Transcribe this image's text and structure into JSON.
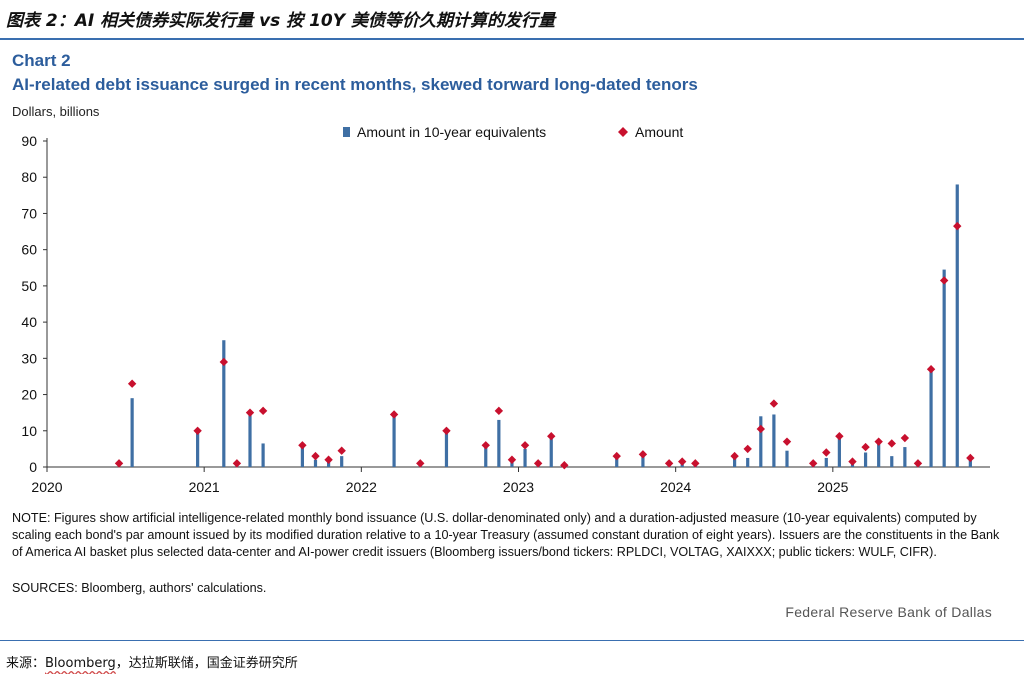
{
  "header": {
    "cn_title": "图表 2：AI 相关债券实际发行量 vs 按 10Y 美债等价久期计算的发行量"
  },
  "chart": {
    "label": "Chart 2",
    "title": "AI-related debt issuance surged in recent months, skewed torward long-dated tenors",
    "y_unit": "Dollars, billions",
    "note": "NOTE: Figures show artificial intelligence-related monthly bond issuance (U.S. dollar-denominated only) and a duration-adjusted measure (10-year equivalents) computed by scaling each bond's par amount issued by its modified duration relative to a 10-year Treasury (assumed constant duration of eight years). Issuers are the constituents in the Bank of America AI basket plus selected data-center and AI-power credit issuers (Bloomberg issuers/bond tickers: RPLDCI, VOLTAG, XAIXXX; public tickers: WULF, CIFR).",
    "sources": "SOURCES: Bloomberg, authors' calculations.",
    "credit": "Federal Reserve Bank of Dallas"
  },
  "footer": {
    "prefix": "来源：",
    "bloomberg": "Bloomberg",
    "rest": "，达拉斯联储，国金证券研究所"
  },
  "colors": {
    "bar": "#3f6fa4",
    "marker": "#c8102e",
    "axis": "#333333",
    "title_blue": "#2c5d9c"
  },
  "chart_data": {
    "type": "bar",
    "ylim": [
      0,
      90
    ],
    "yticks": [
      0,
      10,
      20,
      30,
      40,
      50,
      60,
      70,
      80,
      90
    ],
    "xlim": [
      "2020-01",
      "2026-01"
    ],
    "xticks": [
      "2020",
      "2021",
      "2022",
      "2023",
      "2024",
      "2025"
    ],
    "grid": false,
    "legend_position": "top",
    "series": [
      {
        "name": "Amount in 10-year equivalents",
        "style": "bar",
        "points": [
          [
            "2020-06",
            0
          ],
          [
            "2020-07",
            19
          ],
          [
            "2020-12",
            10
          ],
          [
            "2021-02",
            35
          ],
          [
            "2021-03",
            0.5
          ],
          [
            "2021-04",
            15
          ],
          [
            "2021-05",
            6.5
          ],
          [
            "2021-08",
            5.5
          ],
          [
            "2021-09",
            2
          ],
          [
            "2021-10",
            2
          ],
          [
            "2021-11",
            3
          ],
          [
            "2022-03",
            14.5
          ],
          [
            "2022-05",
            1
          ],
          [
            "2022-07",
            9.5
          ],
          [
            "2022-10",
            6
          ],
          [
            "2022-11",
            13
          ],
          [
            "2022-12",
            1.5
          ],
          [
            "2023-01",
            5
          ],
          [
            "2023-02",
            0.5
          ],
          [
            "2023-03",
            8.5
          ],
          [
            "2023-04",
            0.5
          ],
          [
            "2023-08",
            2.5
          ],
          [
            "2023-10",
            3
          ],
          [
            "2023-12",
            0.5
          ],
          [
            "2024-01",
            1.5
          ],
          [
            "2024-02",
            1
          ],
          [
            "2024-05",
            3
          ],
          [
            "2024-06",
            2.5
          ],
          [
            "2024-07",
            14
          ],
          [
            "2024-08",
            14.5
          ],
          [
            "2024-09",
            4.5
          ],
          [
            "2024-11",
            0.3
          ],
          [
            "2024-12",
            2.5
          ],
          [
            "2025-01",
            8
          ],
          [
            "2025-02",
            1
          ],
          [
            "2025-03",
            4
          ],
          [
            "2025-04",
            7
          ],
          [
            "2025-05",
            3
          ],
          [
            "2025-06",
            5.5
          ],
          [
            "2025-07",
            0.5
          ],
          [
            "2025-08",
            27
          ],
          [
            "2025-09",
            54.5
          ],
          [
            "2025-10",
            78
          ],
          [
            "2025-11",
            2
          ]
        ]
      },
      {
        "name": "Amount",
        "style": "marker",
        "points": [
          [
            "2020-06",
            1
          ],
          [
            "2020-07",
            23
          ],
          [
            "2020-12",
            10
          ],
          [
            "2021-02",
            29
          ],
          [
            "2021-03",
            1
          ],
          [
            "2021-04",
            15
          ],
          [
            "2021-05",
            15.5
          ],
          [
            "2021-08",
            6
          ],
          [
            "2021-09",
            3
          ],
          [
            "2021-10",
            2
          ],
          [
            "2021-11",
            4.5
          ],
          [
            "2022-03",
            14.5
          ],
          [
            "2022-05",
            1
          ],
          [
            "2022-07",
            10
          ],
          [
            "2022-10",
            6
          ],
          [
            "2022-11",
            15.5
          ],
          [
            "2022-12",
            2
          ],
          [
            "2023-01",
            6
          ],
          [
            "2023-02",
            1
          ],
          [
            "2023-03",
            8.5
          ],
          [
            "2023-04",
            0.5
          ],
          [
            "2023-08",
            3
          ],
          [
            "2023-10",
            3.5
          ],
          [
            "2023-12",
            1
          ],
          [
            "2024-01",
            1.5
          ],
          [
            "2024-02",
            1
          ],
          [
            "2024-05",
            3
          ],
          [
            "2024-06",
            5
          ],
          [
            "2024-07",
            10.5
          ],
          [
            "2024-08",
            17.5
          ],
          [
            "2024-09",
            7
          ],
          [
            "2024-11",
            1
          ],
          [
            "2024-12",
            4
          ],
          [
            "2025-01",
            8.5
          ],
          [
            "2025-02",
            1.5
          ],
          [
            "2025-03",
            5.5
          ],
          [
            "2025-04",
            7
          ],
          [
            "2025-05",
            6.5
          ],
          [
            "2025-06",
            8
          ],
          [
            "2025-07",
            1
          ],
          [
            "2025-08",
            27
          ],
          [
            "2025-09",
            51.5
          ],
          [
            "2025-10",
            66.5
          ],
          [
            "2025-11",
            2.5
          ]
        ]
      }
    ]
  }
}
